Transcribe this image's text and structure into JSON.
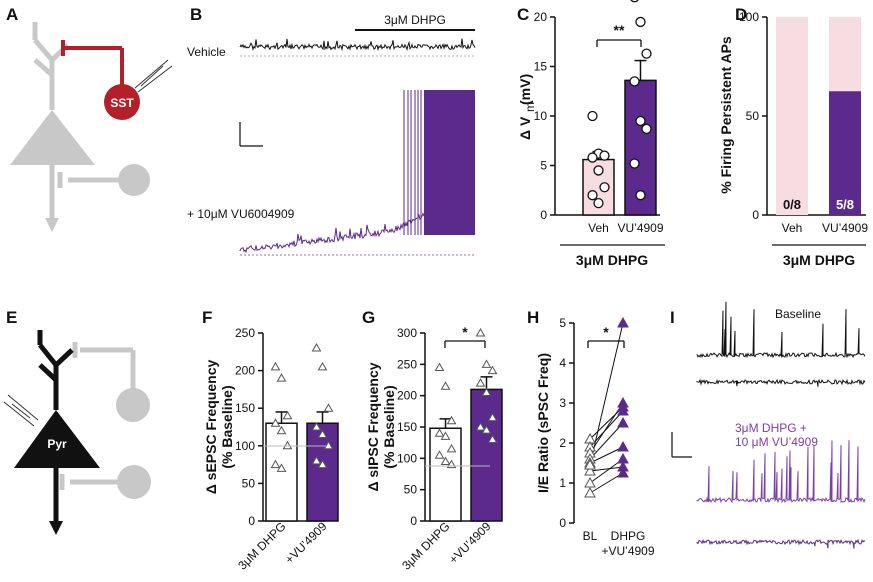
{
  "colors": {
    "purple": "#5b2a8c",
    "purple_light": "#7b3fa8",
    "pink": "#f7dde2",
    "pink_bar": "#f2cdd4",
    "gray": "#c8c8c8",
    "red": "#b3202a",
    "black": "#111111"
  },
  "panels": {
    "A": "A",
    "B": "B",
    "C": "C",
    "D": "D",
    "E": "E",
    "F": "F",
    "G": "G",
    "H": "H",
    "I": "I"
  },
  "panelA": {
    "sst_label": "SST"
  },
  "panelB": {
    "drug_label": "3μM DHPG",
    "vehicle_label": "Vehicle",
    "vu_label": "+ 10μM VU6004909"
  },
  "panelE": {
    "pyr_label": "Pyr"
  },
  "panelI": {
    "baseline_label": "Baseline",
    "drug_label_1": "3μM DHPG +",
    "drug_label_2": "10 μM VU’4909"
  },
  "chart_data": [
    {
      "id": "C",
      "type": "bar",
      "ylabel_main": "Δ V",
      "ylabel_sub": "m",
      "ylabel_unit": " (mV)",
      "ylim": [
        0,
        20
      ],
      "yticks": [
        "0",
        "5",
        "10",
        "15",
        "20"
      ],
      "categories": [
        "Veh",
        "VU’4909"
      ],
      "values": [
        5.6,
        13.6
      ],
      "sem": [
        0.8,
        2.0
      ],
      "points": [
        [
          10,
          6.2,
          6,
          5.8,
          4.5,
          2.8,
          2,
          1.2
        ],
        [
          22,
          19.5,
          16.3,
          13.5,
          9.5,
          8.7,
          5.2,
          2
        ]
      ],
      "significance": "**",
      "group_label": "3μM DHPG"
    },
    {
      "id": "D",
      "type": "bar",
      "ylabel": "% Firing Persistent APs",
      "ylim": [
        0,
        100
      ],
      "yticks": [
        "0",
        "50",
        "100"
      ],
      "categories": [
        "Veh",
        "VU’4909"
      ],
      "values": [
        0,
        62.5
      ],
      "bar_labels": [
        "0/8",
        "5/8"
      ],
      "group_label": "3μM DHPG"
    },
    {
      "id": "F",
      "type": "bar",
      "ylabel_1": "Δ sEPSC Frequency",
      "ylabel_2": "(% Baseline)",
      "ylim": [
        0,
        250
      ],
      "yticks": [
        "0",
        "50",
        "100",
        "150",
        "200",
        "250"
      ],
      "categories": [
        "3μM DHPG",
        "+VU’4909"
      ],
      "values": [
        130,
        130
      ],
      "sem": [
        15,
        15
      ],
      "points": [
        [
          205,
          190,
          140,
          130,
          120,
          100,
          75,
          70
        ],
        [
          230,
          205,
          150,
          125,
          115,
          100,
          80,
          75
        ]
      ]
    },
    {
      "id": "G",
      "type": "bar",
      "ylabel_1": "Δ sIPSC Frequency",
      "ylabel_2": "(% Baseline)",
      "ylim": [
        0,
        300
      ],
      "yticks": [
        "0",
        "50",
        "100",
        "150",
        "200",
        "250",
        "300"
      ],
      "categories": [
        "3μM DHPG",
        "+VU’4909"
      ],
      "values": [
        148,
        210
      ],
      "sem": [
        15,
        20
      ],
      "points": [
        [
          245,
          215,
          160,
          140,
          135,
          115,
          105,
          95,
          90
        ],
        [
          300,
          250,
          240,
          220,
          205,
          165,
          150,
          145,
          130
        ]
      ],
      "significance": "*"
    },
    {
      "id": "H",
      "type": "scatter",
      "ylabel": "I/E Ratio (sPSC Freq)",
      "ylim": [
        0,
        5
      ],
      "yticks": [
        "0",
        "1",
        "2",
        "3",
        "4",
        "5"
      ],
      "categories": [
        "BL",
        "DHPG",
        "+VU’4909"
      ],
      "pairs": [
        [
          2.1,
          2.9
        ],
        [
          1.9,
          2.8
        ],
        [
          1.75,
          3.0
        ],
        [
          1.6,
          2.5
        ],
        [
          1.5,
          1.9
        ],
        [
          1.3,
          1.4
        ],
        [
          1.0,
          1.6
        ],
        [
          0.75,
          1.25
        ]
      ],
      "extra": [
        1.45,
        5.0
      ],
      "significance": "*"
    }
  ]
}
